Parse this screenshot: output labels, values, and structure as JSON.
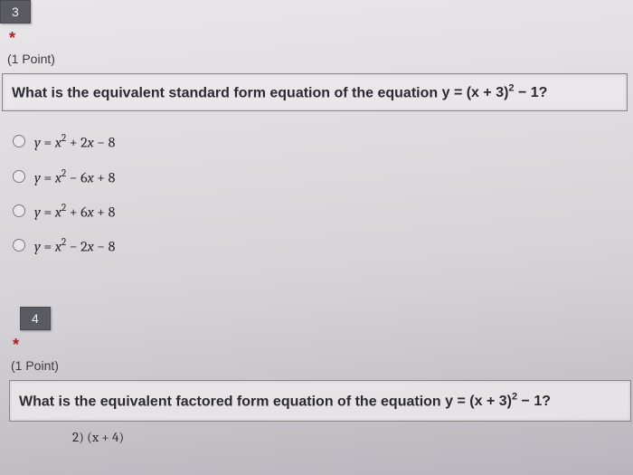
{
  "q3": {
    "number": "3",
    "required": "*",
    "points": "(1 Point)",
    "question_prefix": "What is the equivalent standard form equation of the equation ",
    "question_eq": "y = (x + 3)² − 1?",
    "options": [
      "y = x² + 2x − 8",
      "y = x² − 6x + 8",
      "y = x² + 6x + 8",
      "y = x² − 2x − 8"
    ]
  },
  "q4": {
    "number": "4",
    "required": "*",
    "points": "(1 Point)",
    "question_prefix": "What is the equivalent factored form equation of the equation ",
    "question_eq": "y = (x + 3)² − 1?",
    "cutoff": "2) (x + 4)"
  },
  "colors": {
    "badge_bg": "#5a5a62",
    "badge_text": "#f0f0f0",
    "required": "#b02020",
    "text": "#2a2a32",
    "border": "#888888",
    "radio_border": "#7a7a82",
    "bg_light": "#e8e6e8",
    "bg_dark": "#b8b6bc"
  }
}
